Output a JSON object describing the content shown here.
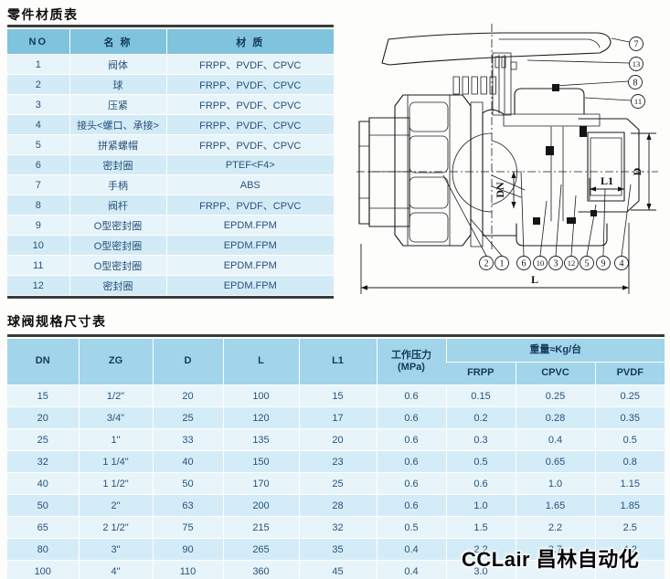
{
  "titles": {
    "parts_table": "零件材质表",
    "spec_table": "球阀规格尺寸表"
  },
  "parts_table": {
    "headers": [
      "NO",
      "名 称",
      "材 质"
    ],
    "rows": [
      [
        "1",
        "阀体",
        "FRPP、PVDF、CPVC"
      ],
      [
        "2",
        "球",
        "FRPP、PVDF、CPVC"
      ],
      [
        "3",
        "压紧",
        "FRPP、PVDF、CPVC"
      ],
      [
        "4",
        "接头<螺口、承接>",
        "FRPP、PVDF、CPVC"
      ],
      [
        "5",
        "拼紧螺帽",
        "FRPP、PVDF、CPVC"
      ],
      [
        "6",
        "密封圈",
        "PTEF<F4>"
      ],
      [
        "7",
        "手柄",
        "ABS"
      ],
      [
        "8",
        "阀杆",
        "FRPP、PVDF、CPVC"
      ],
      [
        "9",
        "O型密封圈",
        "EPDM.FPM"
      ],
      [
        "10",
        "O型密封圈",
        "EPDM.FPM"
      ],
      [
        "11",
        "O型密封圈",
        "EPDM.FPM"
      ],
      [
        "12",
        "密封圈",
        "EPDM.FPM"
      ]
    ]
  },
  "spec_table": {
    "headers": {
      "dn": "DN",
      "zg": "ZG",
      "d": "D",
      "l": "L",
      "l1": "L1",
      "pressure": "工作压力",
      "pressure_unit": "(MPa)",
      "weight_group": "重量≈Kg/台",
      "weight_cols": [
        "FRPP",
        "CPVC",
        "PVDF"
      ]
    },
    "rows": [
      [
        "15",
        "1/2\"",
        "20",
        "100",
        "15",
        "0.6",
        "0.15",
        "0.25",
        "0.25"
      ],
      [
        "20",
        "3/4\"",
        "25",
        "120",
        "17",
        "0.6",
        "0.2",
        "0.28",
        "0.35"
      ],
      [
        "25",
        "1\"",
        "33",
        "135",
        "20",
        "0.6",
        "0.3",
        "0.4",
        "0.5"
      ],
      [
        "32",
        "1 1/4\"",
        "40",
        "150",
        "23",
        "0.6",
        "0.5",
        "0.65",
        "0.8"
      ],
      [
        "40",
        "1 1/2\"",
        "50",
        "170",
        "25",
        "0.6",
        "0.6",
        "1.0",
        "1.15"
      ],
      [
        "50",
        "2\"",
        "63",
        "200",
        "28",
        "0.6",
        "1.0",
        "1.65",
        "1.85"
      ],
      [
        "65",
        "2 1/2\"",
        "75",
        "215",
        "32",
        "0.5",
        "1.5",
        "2.2",
        "2.5"
      ],
      [
        "80",
        "3\"",
        "90",
        "265",
        "35",
        "0.4",
        "2.2",
        "3.7",
        "4.2"
      ],
      [
        "100",
        "4\"",
        "110",
        "360",
        "45",
        "0.4",
        "3.0",
        "",
        ""
      ]
    ]
  },
  "diagram": {
    "dim_labels": {
      "dn": "DN",
      "d": "D",
      "l1": "L1",
      "l": "L"
    },
    "callouts_right": [
      "7",
      "13",
      "8",
      "11"
    ],
    "callouts_bottom": [
      "2",
      "1",
      "6",
      "10",
      "3",
      "12",
      "5",
      "9",
      "4"
    ]
  },
  "watermark": {
    "text": "CCLair 昌林自动化"
  },
  "colors": {
    "table1_header": "#7fc3dd",
    "table2_header": "#a2d5e9",
    "row_light": "#e7f4fa",
    "row_dark": "#d3ebf6",
    "rule_dark": "#3b3b3b",
    "cell_text": "#27517b"
  }
}
